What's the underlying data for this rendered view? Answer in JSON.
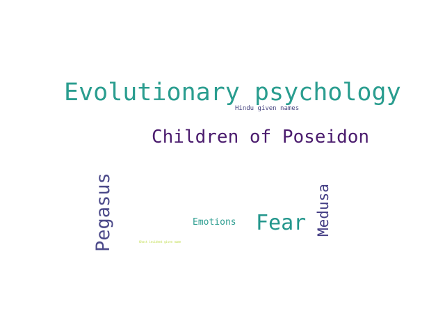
{
  "words": [
    {
      "text": "Evolutionary psychology",
      "color": "#2a9d8f"
    },
    {
      "text": "Hindu given names",
      "color": "#46437f"
    },
    {
      "text": "Children of Poseidon",
      "color": "#4b1c6e"
    },
    {
      "text": "Pegasus",
      "color": "#4c4a8a"
    },
    {
      "text": "Medusa",
      "color": "#433d84"
    },
    {
      "text": "Fear",
      "color": "#23968c"
    },
    {
      "text": "Emotions",
      "color": "#2f9e91"
    },
    {
      "text": "Ghost incident given name",
      "color": "#b9d93a"
    }
  ]
}
